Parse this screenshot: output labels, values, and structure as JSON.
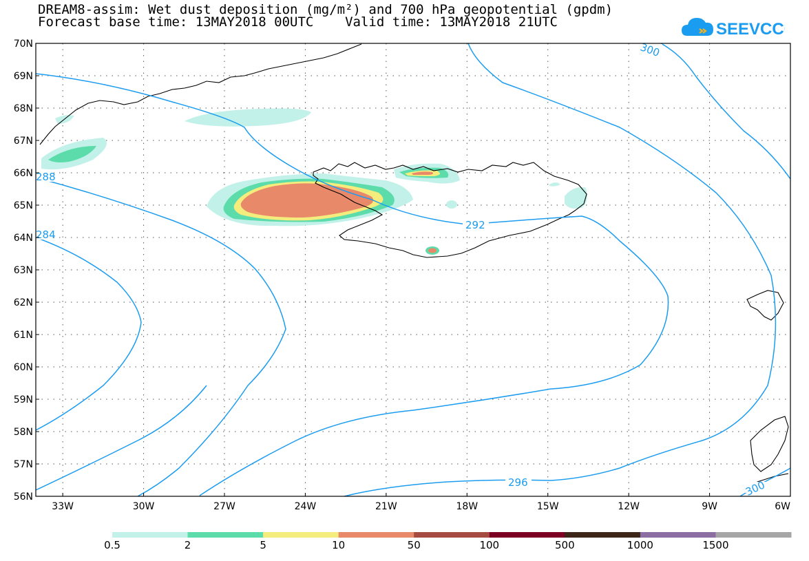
{
  "title_line1": "DREAM8-assim: Wet dust deposition (mg/m²) and 700 hPa geopotential (gpdm)",
  "title_line2": "Forecast base time: 13MAY2018 00UTC    Valid time: 13MAY2018 21UTC",
  "logo_text": "SEEVCCC",
  "map": {
    "lat_labels": [
      "70N",
      "69N",
      "68N",
      "67N",
      "66N",
      "65N",
      "64N",
      "63N",
      "62N",
      "61N",
      "60N",
      "59N",
      "58N",
      "57N",
      "56N"
    ],
    "lon_labels": [
      "33W",
      "30W",
      "27W",
      "24W",
      "21W",
      "18W",
      "15W",
      "12W",
      "9W",
      "6W"
    ],
    "contour_labels": [
      "300",
      "288",
      "284",
      "292",
      "296",
      "300"
    ],
    "contour_color": "#1a9cf0"
  },
  "legend": {
    "labels": [
      "0.5",
      "2",
      "5",
      "10",
      "50",
      "100",
      "500",
      "1000",
      "1500"
    ],
    "colors": [
      "#c2f1e9",
      "#5ddcab",
      "#f4ec7c",
      "#e8896a",
      "#a64b41",
      "#7d0024",
      "#3b2618",
      "#8d6ea3",
      "#a6a6a6"
    ]
  }
}
